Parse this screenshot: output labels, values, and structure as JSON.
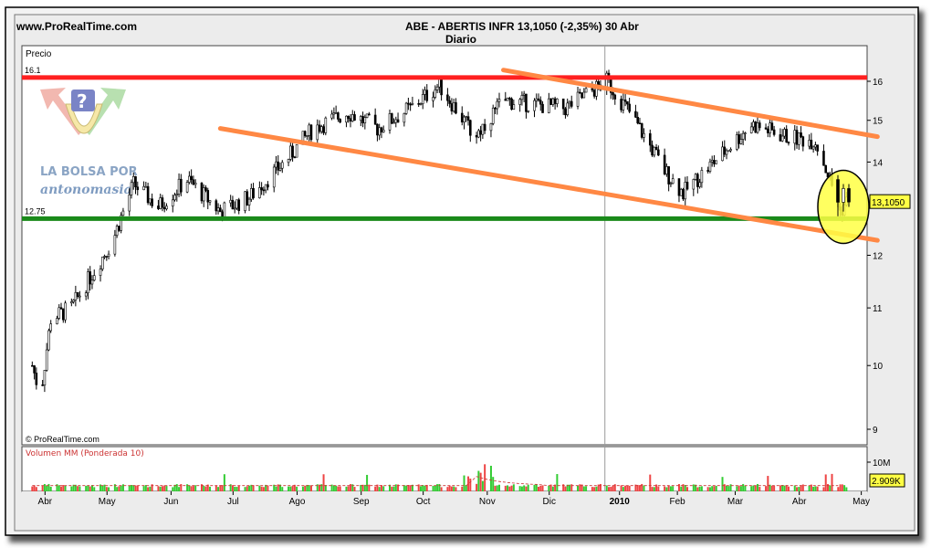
{
  "header": {
    "site": "www.ProRealTime.com",
    "title": "ABE - ABERTIS INFR    13,1050 (-2,35%)    30 Abr",
    "subtitle": "Diario"
  },
  "panels": {
    "price_label": "Precio",
    "volume_label": "Volumen MM (Ponderada 10)",
    "copyright": "© ProRealTime.com"
  },
  "logo": {
    "line1": "LA BOLSA POR",
    "line2": "antonomasia"
  },
  "colors": {
    "resistance": "#ff2020",
    "support": "#1a8a1a",
    "channel": "#ff8844",
    "highlight": "#ffff44",
    "candle": "#000000",
    "volume_up": "#33cc33",
    "volume_down": "#ee4444",
    "last_price_box": "#ffff44"
  },
  "chart_data": {
    "type": "candlestick",
    "y_scale": "log",
    "price_ylim": [
      8.8,
      16.6
    ],
    "price_ticks": [
      9,
      10,
      11,
      12,
      14,
      15,
      16
    ],
    "x_tick_labels": [
      "Abr",
      "May",
      "Jun",
      "Jul",
      "Ago",
      "Sep",
      "Oct",
      "Nov",
      "Dic",
      "2010",
      "Feb",
      "Mar",
      "Abr",
      "May"
    ],
    "last_price": "13,1050",
    "levels": [
      {
        "label": "16.1",
        "value": 16.1
      },
      {
        "label": "12.75",
        "value": 12.75
      }
    ],
    "channel_upper": [
      [
        "2009-11-15",
        16.3
      ],
      [
        "2010-05-15",
        14.6
      ]
    ],
    "channel_lower": [
      [
        "2009-07-01",
        14.8
      ],
      [
        "2010-05-15",
        12.3
      ]
    ],
    "price_path": [
      [
        "2009-04-01",
        10.0
      ],
      [
        "2009-04-05",
        9.5
      ],
      [
        "2009-04-10",
        10.8
      ],
      [
        "2009-04-20",
        11.0
      ],
      [
        "2009-05-01",
        11.7
      ],
      [
        "2009-05-10",
        12.3
      ],
      [
        "2009-05-20",
        13.5
      ],
      [
        "2009-06-01",
        13.0
      ],
      [
        "2009-06-15",
        13.6
      ],
      [
        "2009-07-01",
        12.9
      ],
      [
        "2009-07-15",
        13.2
      ],
      [
        "2009-08-01",
        14.0
      ],
      [
        "2009-08-15",
        14.8
      ],
      [
        "2009-09-01",
        15.2
      ],
      [
        "2009-09-15",
        14.8
      ],
      [
        "2009-10-01",
        15.3
      ],
      [
        "2009-10-15",
        15.9
      ],
      [
        "2009-11-01",
        14.6
      ],
      [
        "2009-11-15",
        15.5
      ],
      [
        "2009-12-01",
        15.4
      ],
      [
        "2009-12-15",
        15.3
      ],
      [
        "2010-01-04",
        16.0
      ],
      [
        "2010-01-15",
        15.2
      ],
      [
        "2010-02-01",
        13.8
      ],
      [
        "2010-02-10",
        13.3
      ],
      [
        "2010-03-01",
        14.2
      ],
      [
        "2010-03-15",
        14.9
      ],
      [
        "2010-04-01",
        14.6
      ],
      [
        "2010-04-15",
        14.5
      ],
      [
        "2010-04-22",
        13.6
      ],
      [
        "2010-04-27",
        12.9
      ],
      [
        "2010-04-30",
        13.105
      ]
    ],
    "volume_scale_label": "10M",
    "last_volume": "2.909K"
  }
}
